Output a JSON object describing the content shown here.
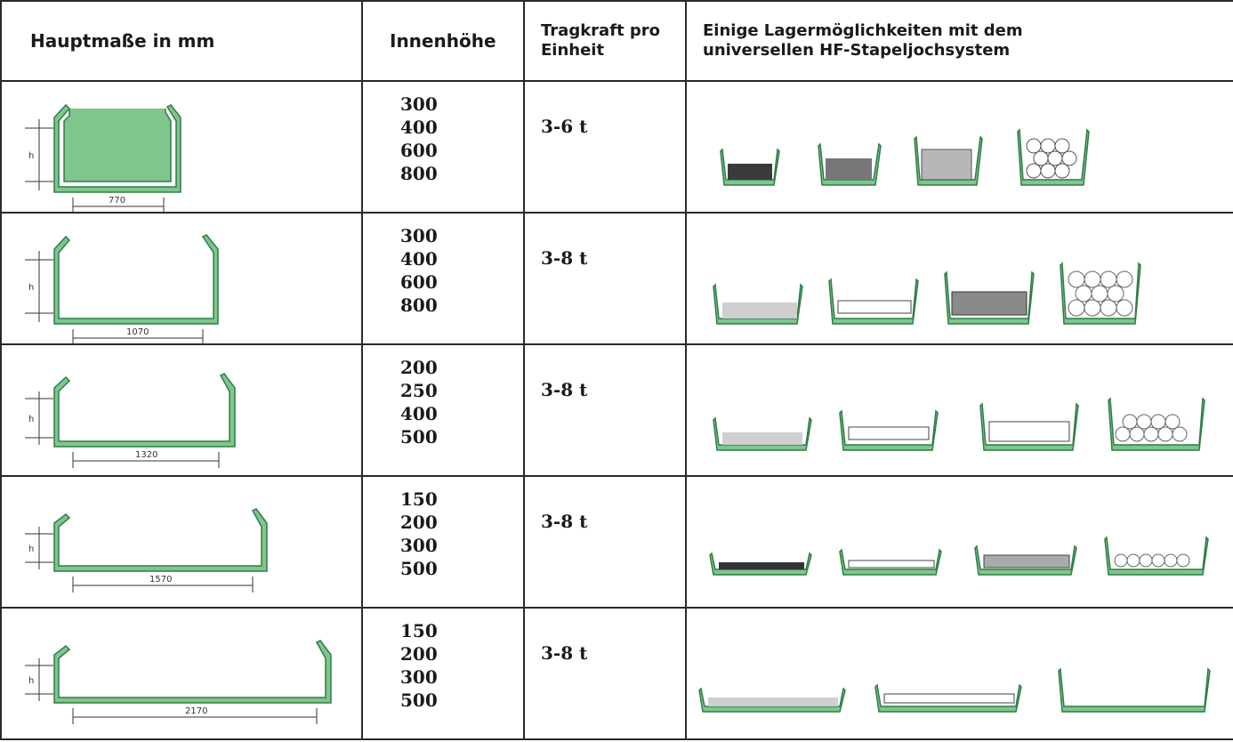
{
  "header": {
    "col_dimensions": "Hauptmaße in mm",
    "col_inner_height": "Innenhöhe",
    "col_capacity_line1": "Tragkraft pro",
    "col_capacity_line2": "Einheit",
    "col_storage_line1": "Einige Lagermöglichkeiten mit dem",
    "col_storage_line2": "universellen HF-Stapeljochsystem"
  },
  "rows": [
    {
      "width_label": "770",
      "h_label": "h",
      "heights": [
        "300",
        "400",
        "600",
        "800"
      ],
      "capacity": "3-6 t"
    },
    {
      "width_label": "1070",
      "h_label": "h",
      "heights": [
        "300",
        "400",
        "600",
        "800"
      ],
      "capacity": "3-8 t"
    },
    {
      "width_label": "1320",
      "h_label": "h",
      "heights": [
        "200",
        "250",
        "400",
        "500"
      ],
      "capacity": "3-8 t"
    },
    {
      "width_label": "1570",
      "h_label": "h",
      "heights": [
        "150",
        "200",
        "300",
        "500"
      ],
      "capacity": "3-8 t"
    },
    {
      "width_label": "2170",
      "h_label": "h",
      "heights": [
        "150",
        "200",
        "300",
        "500"
      ],
      "capacity": "3-8 t"
    }
  ],
  "colors": {
    "yoke_green": "#7fc58d",
    "yoke_outline": "#2f7d46",
    "border": "#2a2a2a"
  },
  "icons": [
    "stacking-yoke-dimension-drawing",
    "storage-example-icons"
  ]
}
